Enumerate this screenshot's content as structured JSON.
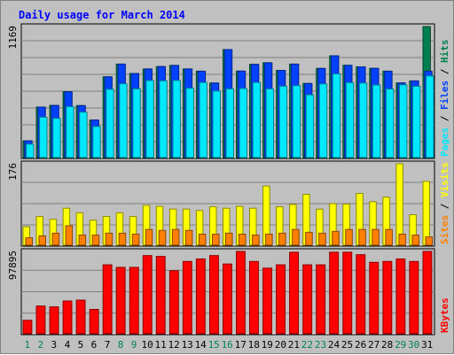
{
  "title": "Daily usage for March 2014",
  "colors": {
    "hits": "#008050",
    "files": "#0040ff",
    "pages": "#00e8ff",
    "visits": "#ffff00",
    "sites": "#ff8000",
    "kbytes": "#ff0000",
    "weekday_label": "#000000",
    "weekend_label": "#00805c",
    "panel_bg": "#c0c0c0",
    "gridline": "#808080"
  },
  "chart_data": [
    {
      "type": "bar",
      "panel": "top",
      "ymax_label": "1169",
      "ylim": [
        0,
        1169
      ],
      "categories": [
        "1",
        "2",
        "3",
        "4",
        "5",
        "6",
        "7",
        "8",
        "9",
        "10",
        "11",
        "12",
        "13",
        "14",
        "15",
        "16",
        "17",
        "18",
        "19",
        "20",
        "21",
        "22",
        "23",
        "24",
        "25",
        "26",
        "27",
        "28",
        "29",
        "30",
        "31"
      ],
      "weekend_days": [
        "1",
        "2",
        "8",
        "9",
        "15",
        "16",
        "22",
        "23",
        "29",
        "30"
      ],
      "right_label_parts": [
        "Pages",
        "Files",
        "Hits"
      ],
      "series": [
        {
          "name": "Hits",
          "color_key": "hits",
          "values": [
            150,
            450,
            465,
            588,
            464,
            335,
            720,
            834,
            750,
            791,
            812,
            822,
            791,
            771,
            665,
            964,
            772,
            832,
            846,
            778,
            834,
            661,
            795,
            908,
            823,
            810,
            796,
            771,
            666,
            684,
            1169
          ]
        },
        {
          "name": "Files",
          "color_key": "files",
          "values": [
            150,
            450,
            465,
            588,
            464,
            335,
            720,
            834,
            750,
            791,
            812,
            822,
            791,
            771,
            665,
            964,
            772,
            832,
            846,
            778,
            834,
            661,
            795,
            908,
            823,
            810,
            796,
            771,
            666,
            684,
            771
          ]
        },
        {
          "name": "Pages",
          "color_key": "pages",
          "values": [
            120,
            360,
            350,
            455,
            405,
            277,
            609,
            659,
            613,
            688,
            685,
            688,
            619,
            670,
            594,
            613,
            616,
            670,
            613,
            637,
            641,
            560,
            657,
            747,
            668,
            665,
            648,
            611,
            649,
            636,
            728
          ]
        }
      ]
    },
    {
      "type": "bar",
      "panel": "middle",
      "ymax_label": "176",
      "ylim": [
        0,
        176
      ],
      "categories": [
        "1",
        "2",
        "3",
        "4",
        "5",
        "6",
        "7",
        "8",
        "9",
        "10",
        "11",
        "12",
        "13",
        "14",
        "15",
        "16",
        "17",
        "18",
        "19",
        "20",
        "21",
        "22",
        "23",
        "24",
        "25",
        "26",
        "27",
        "28",
        "29",
        "30",
        "31"
      ],
      "right_label_parts": [
        "Sites",
        "Visits"
      ],
      "series": [
        {
          "name": "Visits",
          "color_key": "visits",
          "values": [
            40,
            62,
            56,
            80,
            70,
            54,
            62,
            70,
            62,
            86,
            84,
            78,
            78,
            75,
            83,
            80,
            84,
            80,
            128,
            83,
            88,
            110,
            78,
            90,
            89,
            112,
            94,
            104,
            176,
            66,
            138
          ]
        },
        {
          "name": "Sites",
          "color_key": "sites",
          "values": [
            16,
            20,
            26,
            42,
            22,
            22,
            26,
            26,
            24,
            34,
            32,
            34,
            32,
            24,
            24,
            26,
            24,
            22,
            24,
            26,
            34,
            28,
            26,
            30,
            34,
            34,
            34,
            34,
            24,
            22,
            18
          ]
        }
      ]
    },
    {
      "type": "bar",
      "panel": "bottom",
      "ymax_label": "97895",
      "ylim": [
        0,
        97895
      ],
      "categories": [
        "1",
        "2",
        "3",
        "4",
        "5",
        "6",
        "7",
        "8",
        "9",
        "10",
        "11",
        "12",
        "13",
        "14",
        "15",
        "16",
        "17",
        "18",
        "19",
        "20",
        "21",
        "22",
        "23",
        "24",
        "25",
        "26",
        "27",
        "28",
        "29",
        "30",
        "31"
      ],
      "right_label_parts": [
        "KBytes"
      ],
      "series": [
        {
          "name": "KBytes",
          "color_key": "kbytes",
          "values": [
            16000,
            33000,
            32000,
            39000,
            40000,
            29000,
            82000,
            79000,
            79000,
            93000,
            92000,
            75000,
            86000,
            89000,
            93000,
            83000,
            98000,
            86000,
            78000,
            82000,
            97000,
            82000,
            82000,
            97000,
            97000,
            94000,
            85000,
            86000,
            89000,
            86000,
            100000
          ]
        }
      ]
    }
  ]
}
